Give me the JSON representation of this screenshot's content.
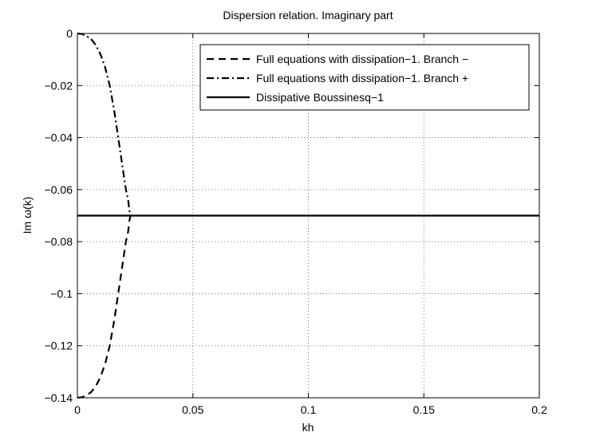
{
  "chart_data": {
    "type": "line",
    "title": "Dispersion relation. Imaginary part",
    "xlabel": "kh",
    "ylabel": "Im ω(k)",
    "xlim": [
      0,
      0.2
    ],
    "ylim": [
      -0.14,
      0
    ],
    "x_ticks": [
      0,
      0.05,
      0.1,
      0.15,
      0.2
    ],
    "x_tick_labels": [
      "0",
      "0.05",
      "0.1",
      "0.15",
      "0.2"
    ],
    "y_ticks": [
      0,
      -0.02,
      -0.04,
      -0.06,
      -0.08,
      -0.1,
      -0.12,
      -0.14
    ],
    "y_tick_labels": [
      "0",
      "−0.02",
      "−0.04",
      "−0.06",
      "−0.08",
      "−0.1",
      "−0.12",
      "−0.14"
    ],
    "grid": true,
    "legend_position": "top-right",
    "series": [
      {
        "name": "Full equations with dissipation−1. Branch −",
        "style": "dashed",
        "color": "#000000",
        "x": [
          0,
          0.002,
          0.004,
          0.006,
          0.008,
          0.01,
          0.012,
          0.014,
          0.016,
          0.018,
          0.02,
          0.021,
          0.022,
          0.0225,
          0.023
        ],
        "y": [
          -0.14,
          -0.1398,
          -0.139,
          -0.1378,
          -0.1355,
          -0.132,
          -0.127,
          -0.12,
          -0.11,
          -0.098,
          -0.086,
          -0.08,
          -0.076,
          -0.072,
          -0.07
        ]
      },
      {
        "name": "Full equations with dissipation−1. Branch +",
        "style": "dashdot",
        "color": "#000000",
        "x": [
          0,
          0.002,
          0.004,
          0.006,
          0.008,
          0.01,
          0.012,
          0.014,
          0.016,
          0.018,
          0.02,
          0.021,
          0.022,
          0.0225,
          0.023
        ],
        "y": [
          0,
          -0.0002,
          -0.001,
          -0.0022,
          -0.0045,
          -0.008,
          -0.013,
          -0.02,
          -0.03,
          -0.042,
          -0.054,
          -0.06,
          -0.064,
          -0.068,
          -0.07
        ]
      },
      {
        "name": "Dissipative Boussinesq−1",
        "style": "solid",
        "color": "#000000",
        "x": [
          0,
          0.2
        ],
        "y": [
          -0.07,
          -0.07
        ]
      }
    ]
  }
}
